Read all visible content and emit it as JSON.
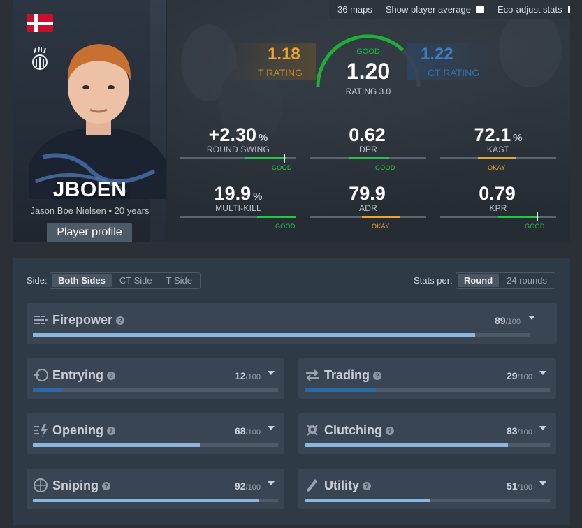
{
  "header": {
    "maps_count": "36 maps",
    "show_player_average": "Show player average",
    "eco_adjust": "Eco-adjust stats"
  },
  "player": {
    "nickname": "JBOEN",
    "fullname_age": "Jason Boe Nielsen • 20 years",
    "profile_button": "Player profile",
    "country_flag": "denmark-flag-icon",
    "team_logo": "big-team-logo"
  },
  "rating": {
    "t_value": "1.18",
    "t_label": "T RATING",
    "ct_value": "1.22",
    "ct_label": "CT RATING",
    "overall": "1.20",
    "overall_label": "RATING 3.0",
    "verdict": "GOOD",
    "gauge_fraction": 0.74
  },
  "stats": [
    {
      "value": "+2.30",
      "pct": "%",
      "label": "ROUND SWING",
      "verdict": "GOOD",
      "type": "good",
      "position": 0.9
    },
    {
      "value": "0.62",
      "pct": "",
      "label": "DPR",
      "verdict": "GOOD",
      "type": "good",
      "position": 0.67
    },
    {
      "value": "72.1",
      "pct": "%",
      "label": "KAST",
      "verdict": "OKAY",
      "type": "okay",
      "position": 0.53
    },
    {
      "value": "19.9",
      "pct": "%",
      "label": "MULTI-KILL",
      "verdict": "GOOD",
      "type": "good",
      "position": 1.0
    },
    {
      "value": "79.9",
      "pct": "",
      "label": "ADR",
      "verdict": "OKAY",
      "type": "okay",
      "position": 0.65
    },
    {
      "value": "0.79",
      "pct": "",
      "label": "KPR",
      "verdict": "GOOD",
      "type": "good",
      "position": 0.84
    }
  ],
  "filters": {
    "side_label": "Side:",
    "side_options": [
      "Both Sides",
      "CT Side",
      "T Side"
    ],
    "per_label": "Stats per:",
    "per_options": [
      "Round",
      "24 rounds"
    ]
  },
  "roles": [
    {
      "name": "Firepower",
      "score": "89",
      "den": "/100",
      "icon": "firepower-icon",
      "pct": 89
    },
    {
      "name": "Entrying",
      "score": "12",
      "den": "/100",
      "icon": "entrying-icon",
      "pct": 12
    },
    {
      "name": "Trading",
      "score": "29",
      "den": "/100",
      "icon": "trading-icon",
      "pct": 29
    },
    {
      "name": "Opening",
      "score": "68",
      "den": "/100",
      "icon": "opening-icon",
      "pct": 68
    },
    {
      "name": "Clutching",
      "score": "83",
      "den": "/100",
      "icon": "clutching-icon",
      "pct": 83
    },
    {
      "name": "Sniping",
      "score": "92",
      "den": "/100",
      "icon": "sniping-icon",
      "pct": 92
    },
    {
      "name": "Utility",
      "score": "51",
      "den": "/100",
      "icon": "utility-icon",
      "pct": 51
    }
  ],
  "colors": {
    "good": "#2bc24a",
    "okay": "#e8a634",
    "t_side": "#e8a634",
    "ct_side": "#3f7fbf",
    "bar_high": "#8ab6e0",
    "bar_low": "#2b6aa8"
  }
}
